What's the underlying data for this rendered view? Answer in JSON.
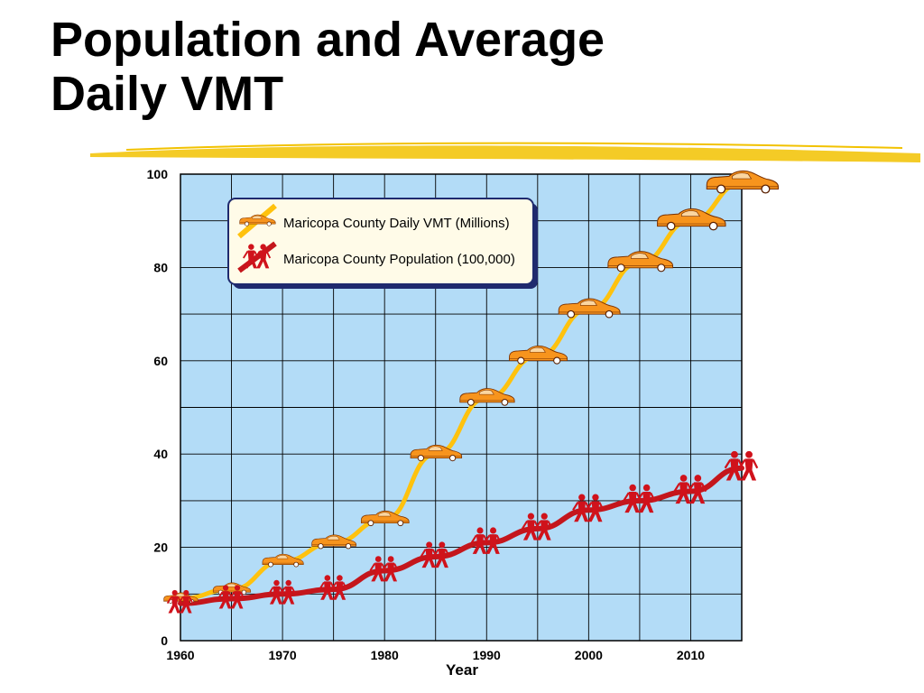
{
  "slide": {
    "title_line1": "Population and Average",
    "title_line2": "Daily VMT"
  },
  "colors": {
    "plot_background": "#b3dcf7",
    "grid": "#000000",
    "vmt_line": "#ffc20e",
    "vmt_marker": "#f7941d",
    "population_line": "#c4161c",
    "population_marker": "#d0121b",
    "brush_stroke": "#f2c200"
  },
  "chart_data": {
    "type": "line",
    "title": "",
    "xlabel": "Year",
    "ylabel": "",
    "xlim": [
      1960,
      2015
    ],
    "ylim": [
      0,
      100
    ],
    "x_ticks": [
      1960,
      1970,
      1980,
      1990,
      2000,
      2010
    ],
    "y_ticks": [
      0,
      20,
      40,
      60,
      80,
      100
    ],
    "grid": true,
    "legend_position": "top-left",
    "series": [
      {
        "name": "Maricopa County Daily VMT (Millions)",
        "marker_icon": "car-icon",
        "x": [
          1960,
          1965,
          1970,
          1975,
          1980,
          1985,
          1990,
          1995,
          2000,
          2005,
          2010,
          2015
        ],
        "y": [
          9,
          11,
          17,
          21,
          26,
          40,
          52,
          61,
          71,
          81,
          90,
          98
        ]
      },
      {
        "name": "Maricopa County Population (100,000)",
        "marker_icon": "people-icon",
        "x": [
          1960,
          1965,
          1970,
          1975,
          1980,
          1985,
          1990,
          1995,
          2000,
          2005,
          2010,
          2015
        ],
        "y": [
          8,
          9,
          10,
          11,
          15,
          18,
          21,
          24,
          28,
          30,
          32,
          37
        ]
      }
    ]
  }
}
